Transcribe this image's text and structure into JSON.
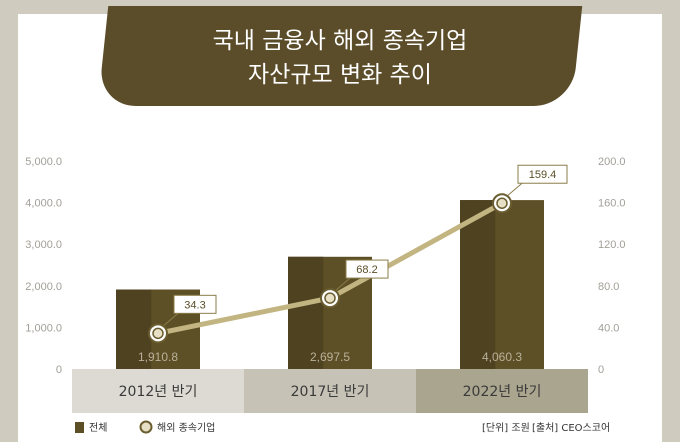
{
  "title": {
    "line1": "국내 금융사 해외 종속기업",
    "line2": "자산규모 변화 추이"
  },
  "colors": {
    "bar": "#5e5026",
    "bar_dark": "#4e4220",
    "line": "#c2b582",
    "marker_fill": "#e8e0c4",
    "marker_ring": "#6a5d30",
    "band_1": "#dcdad2",
    "band_2": "#c6c3b6",
    "band_3": "#a9a58e",
    "background": "#cfcbbf"
  },
  "chart_data": {
    "type": "bar",
    "categories": [
      "2012년 반기",
      "2017년 반기",
      "2022년 반기"
    ],
    "series": [
      {
        "name": "전체",
        "type": "bar",
        "axis": "left",
        "values": [
          1910.8,
          2697.5,
          4060.3
        ],
        "labels": [
          "1,910.8",
          "2,697.5",
          "4,060.3"
        ]
      },
      {
        "name": "해외 종속기업",
        "type": "line",
        "axis": "right",
        "values": [
          34.3,
          68.2,
          159.4
        ],
        "labels": [
          "34.3",
          "68.2",
          "159.4"
        ]
      }
    ],
    "y_left": {
      "ylim": [
        0,
        5000
      ],
      "ticks": [
        "0",
        "1,000.0",
        "2,000.0",
        "3,000.0",
        "4,000.0",
        "5,000.0"
      ]
    },
    "y_right": {
      "ylim": [
        0,
        200
      ],
      "ticks": [
        "0",
        "40.0",
        "80.0",
        "120.0",
        "160.0",
        "200.0"
      ]
    },
    "legend": {
      "position": "bottom-left",
      "items": [
        "전체",
        "해외 종속기업"
      ]
    },
    "grid": false
  },
  "footer": {
    "legend_bar": "전체",
    "legend_line": "해외 종속기업",
    "unit_note": "[단위] 조원",
    "source_note": "[출처] CEO스코어"
  }
}
